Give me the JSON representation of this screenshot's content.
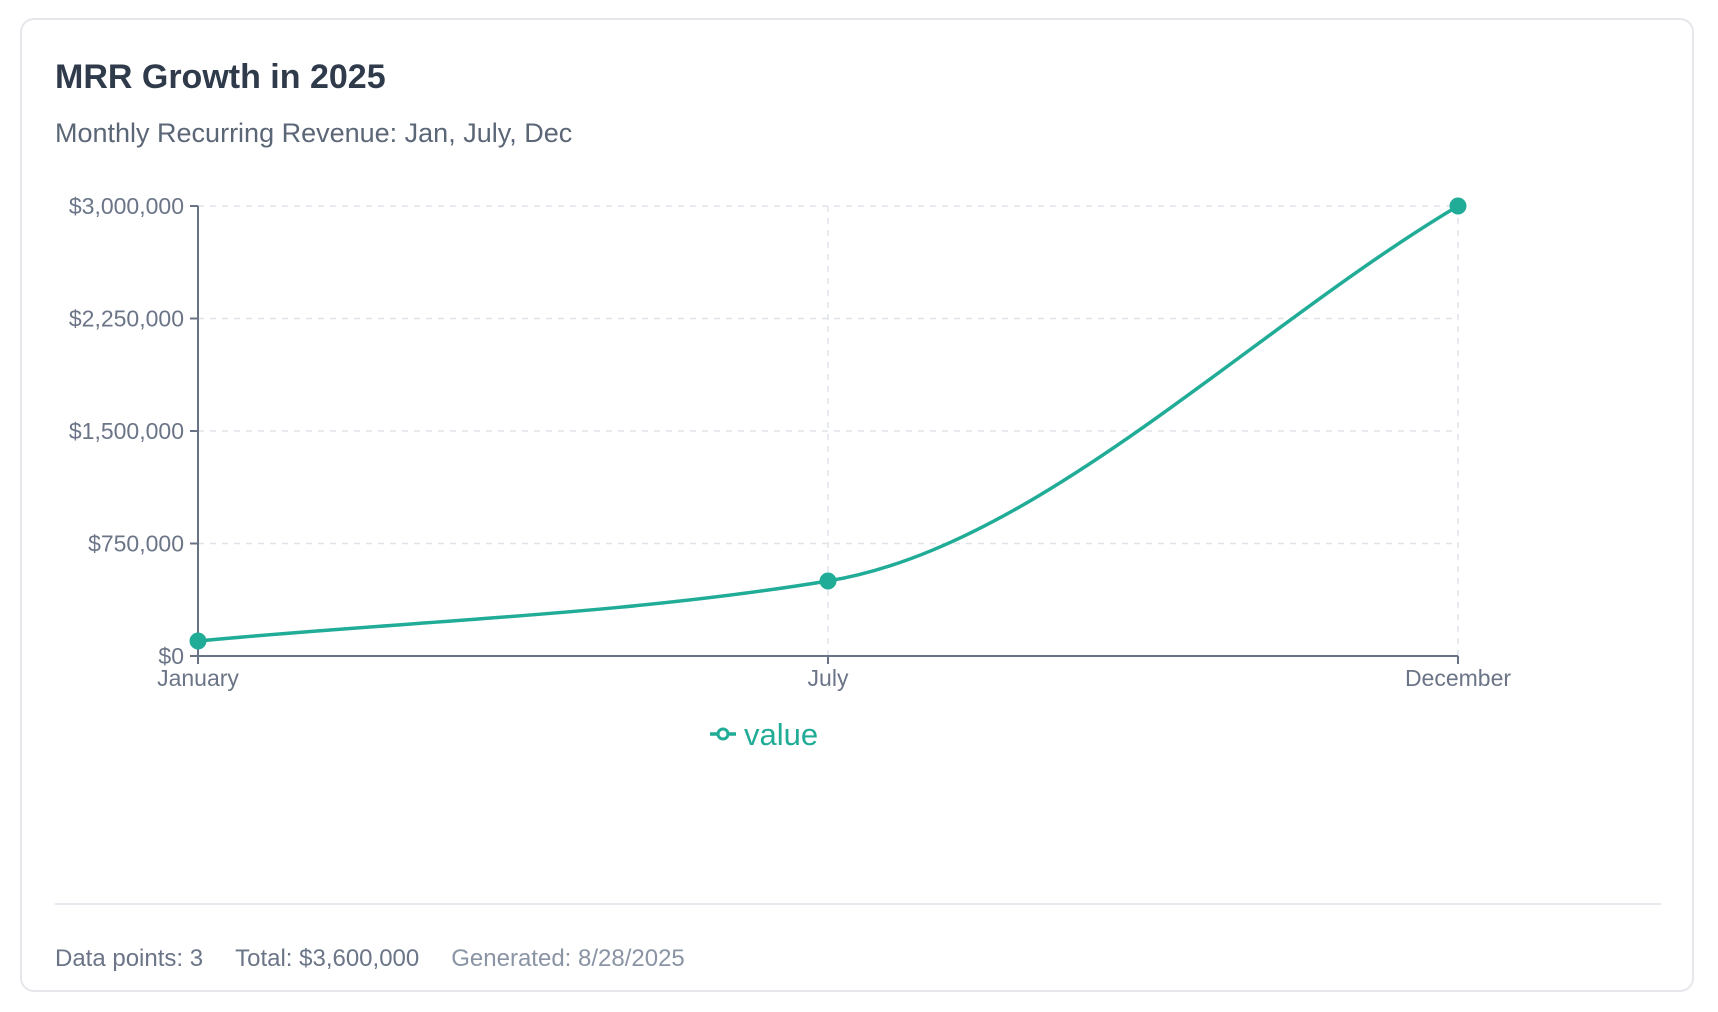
{
  "card": {
    "title": "MRR Growth in 2025",
    "subtitle": "Monthly Recurring Revenue: Jan, July, Dec"
  },
  "chart_data": {
    "type": "line",
    "title": "MRR Growth in 2025",
    "subtitle": "Monthly Recurring Revenue: Jan, July, Dec",
    "categories": [
      "January",
      "July",
      "December"
    ],
    "series": [
      {
        "name": "value",
        "values": [
          100000,
          500000,
          3000000
        ]
      }
    ],
    "ylim": [
      0,
      3000000
    ],
    "yticks": [
      0,
      750000,
      1500000,
      2250000,
      3000000
    ],
    "ytick_labels": [
      "$0",
      "$750,000",
      "$1,500,000",
      "$2,250,000",
      "$3,000,000"
    ],
    "xlabel": "",
    "ylabel": "",
    "grid": true,
    "legend_position": "bottom-center",
    "line_color": "#20ac96"
  },
  "footer": {
    "data_points": "Data points: 3",
    "total": "Total: $3,600,000",
    "generated": "Generated: 8/28/2025"
  }
}
